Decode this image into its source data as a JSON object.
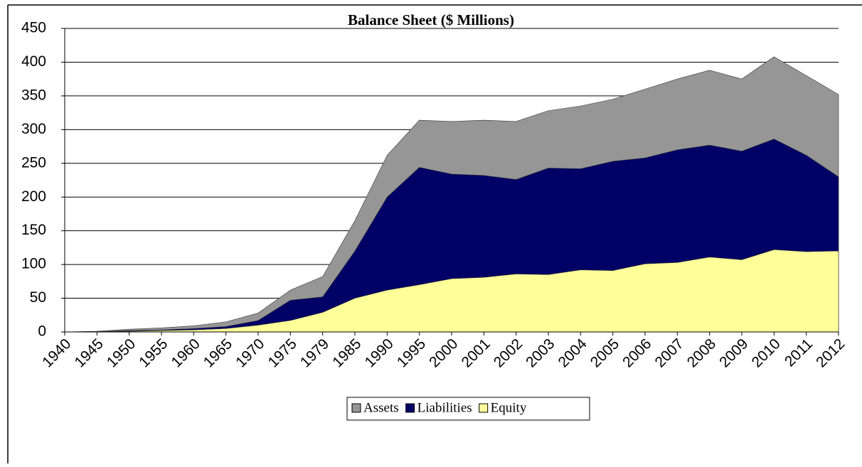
{
  "chart_data": {
    "type": "area",
    "title": "Balance Sheet ($ Millions)",
    "categories": [
      "1940",
      "1945",
      "1950",
      "1955",
      "1960",
      "1965",
      "1970",
      "1975",
      "1979",
      "1985",
      "1990",
      "1995",
      "2000",
      "2001",
      "2002",
      "2003",
      "2004",
      "2005",
      "2006",
      "2007",
      "2008",
      "2009",
      "2010",
      "2011",
      "2012"
    ],
    "series": [
      {
        "name": "Assets",
        "color": "#969696",
        "values": [
          0,
          1,
          4,
          6,
          9,
          15,
          28,
          62,
          82,
          165,
          262,
          314,
          312,
          314,
          312,
          328,
          335,
          345,
          360,
          375,
          388,
          375,
          408,
          380,
          352
        ]
      },
      {
        "name": "Liabilities",
        "color": "#000066",
        "values": [
          0,
          0.5,
          2,
          3,
          5,
          8,
          17,
          47,
          52,
          120,
          200,
          244,
          234,
          232,
          226,
          243,
          242,
          253,
          258,
          270,
          277,
          268,
          286,
          262,
          230
        ]
      },
      {
        "name": "Equity",
        "color": "#ffff99",
        "values": [
          0,
          0.5,
          1,
          2,
          3,
          5,
          10,
          17,
          29,
          50,
          62,
          70,
          79,
          81,
          86,
          85,
          92,
          91,
          101,
          103,
          111,
          107,
          122,
          119,
          120
        ]
      }
    ],
    "ylim": [
      0,
      450
    ],
    "yticks": [
      0,
      50,
      100,
      150,
      200,
      250,
      300,
      350,
      400,
      450
    ],
    "grid": true,
    "legend": "bottom"
  }
}
